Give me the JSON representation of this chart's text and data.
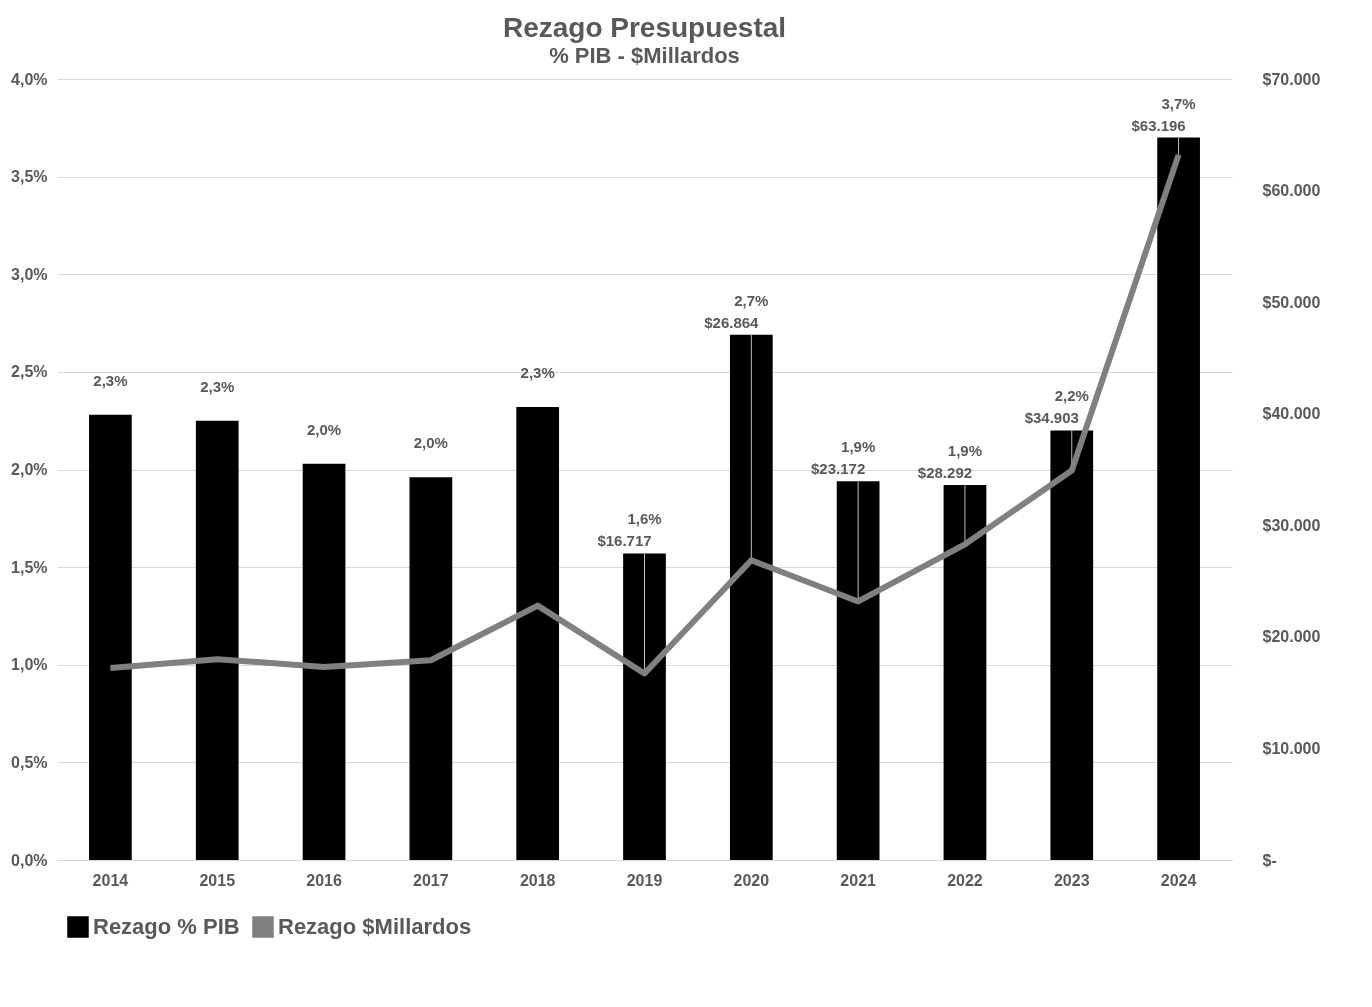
{
  "chart_data": {
    "type": "bar",
    "title": "Rezago Presupuestal",
    "subtitle": "% PIB - $Millardos",
    "categories": [
      "2014",
      "2015",
      "2016",
      "2017",
      "2018",
      "2019",
      "2020",
      "2021",
      "2022",
      "2023",
      "2024"
    ],
    "series": [
      {
        "name": "Rezago % PIB",
        "color": "#000000",
        "values": [
          2.28,
          2.25,
          2.03,
          1.96,
          2.32,
          1.57,
          2.69,
          1.94,
          1.92,
          2.2,
          3.7
        ],
        "value_labels": [
          "2,3%",
          "2,3%",
          "2,0%",
          "2,0%",
          "2,3%",
          "1,6%",
          "2,7%",
          "1,9%",
          "1,9%",
          "2,2%",
          "3,7%"
        ]
      },
      {
        "name": "Rezago $Millardos",
        "type": "line",
        "axis": "y2",
        "color": "#808080",
        "values": [
          17200,
          18000,
          17300,
          17900,
          22800,
          16717,
          26864,
          23172,
          28292,
          34903,
          63196
        ],
        "value_labels": [
          null,
          null,
          null,
          null,
          null,
          "$16.717",
          "$26.864",
          "$23.172",
          "$28.292",
          "$34.903",
          "$63.196"
        ]
      }
    ],
    "ylim": [
      0,
      4
    ],
    "yticks": [
      {
        "value": 0,
        "label": "0,0%"
      },
      {
        "value": 0.5,
        "label": "0,5%"
      },
      {
        "value": 1,
        "label": "1,0%"
      },
      {
        "value": 1.5,
        "label": "1,5%"
      },
      {
        "value": 2,
        "label": "2,0%"
      },
      {
        "value": 2.5,
        "label": "2,5%"
      },
      {
        "value": 3,
        "label": "3,0%"
      },
      {
        "value": 3.5,
        "label": "3,5%"
      },
      {
        "value": 4,
        "label": "4,0%"
      }
    ],
    "y2lim": [
      0,
      70000
    ],
    "y2ticks": [
      {
        "value": 0,
        "label": "$-"
      },
      {
        "value": 10000,
        "label": "$10.000"
      },
      {
        "value": 20000,
        "label": "$20.000"
      },
      {
        "value": 30000,
        "label": "$30.000"
      },
      {
        "value": 40000,
        "label": "$40.000"
      },
      {
        "value": 50000,
        "label": "$50.000"
      },
      {
        "value": 60000,
        "label": "$60.000"
      },
      {
        "value": 70000,
        "label": "$70.000"
      }
    ],
    "grid": "y",
    "legend": "bottom"
  }
}
